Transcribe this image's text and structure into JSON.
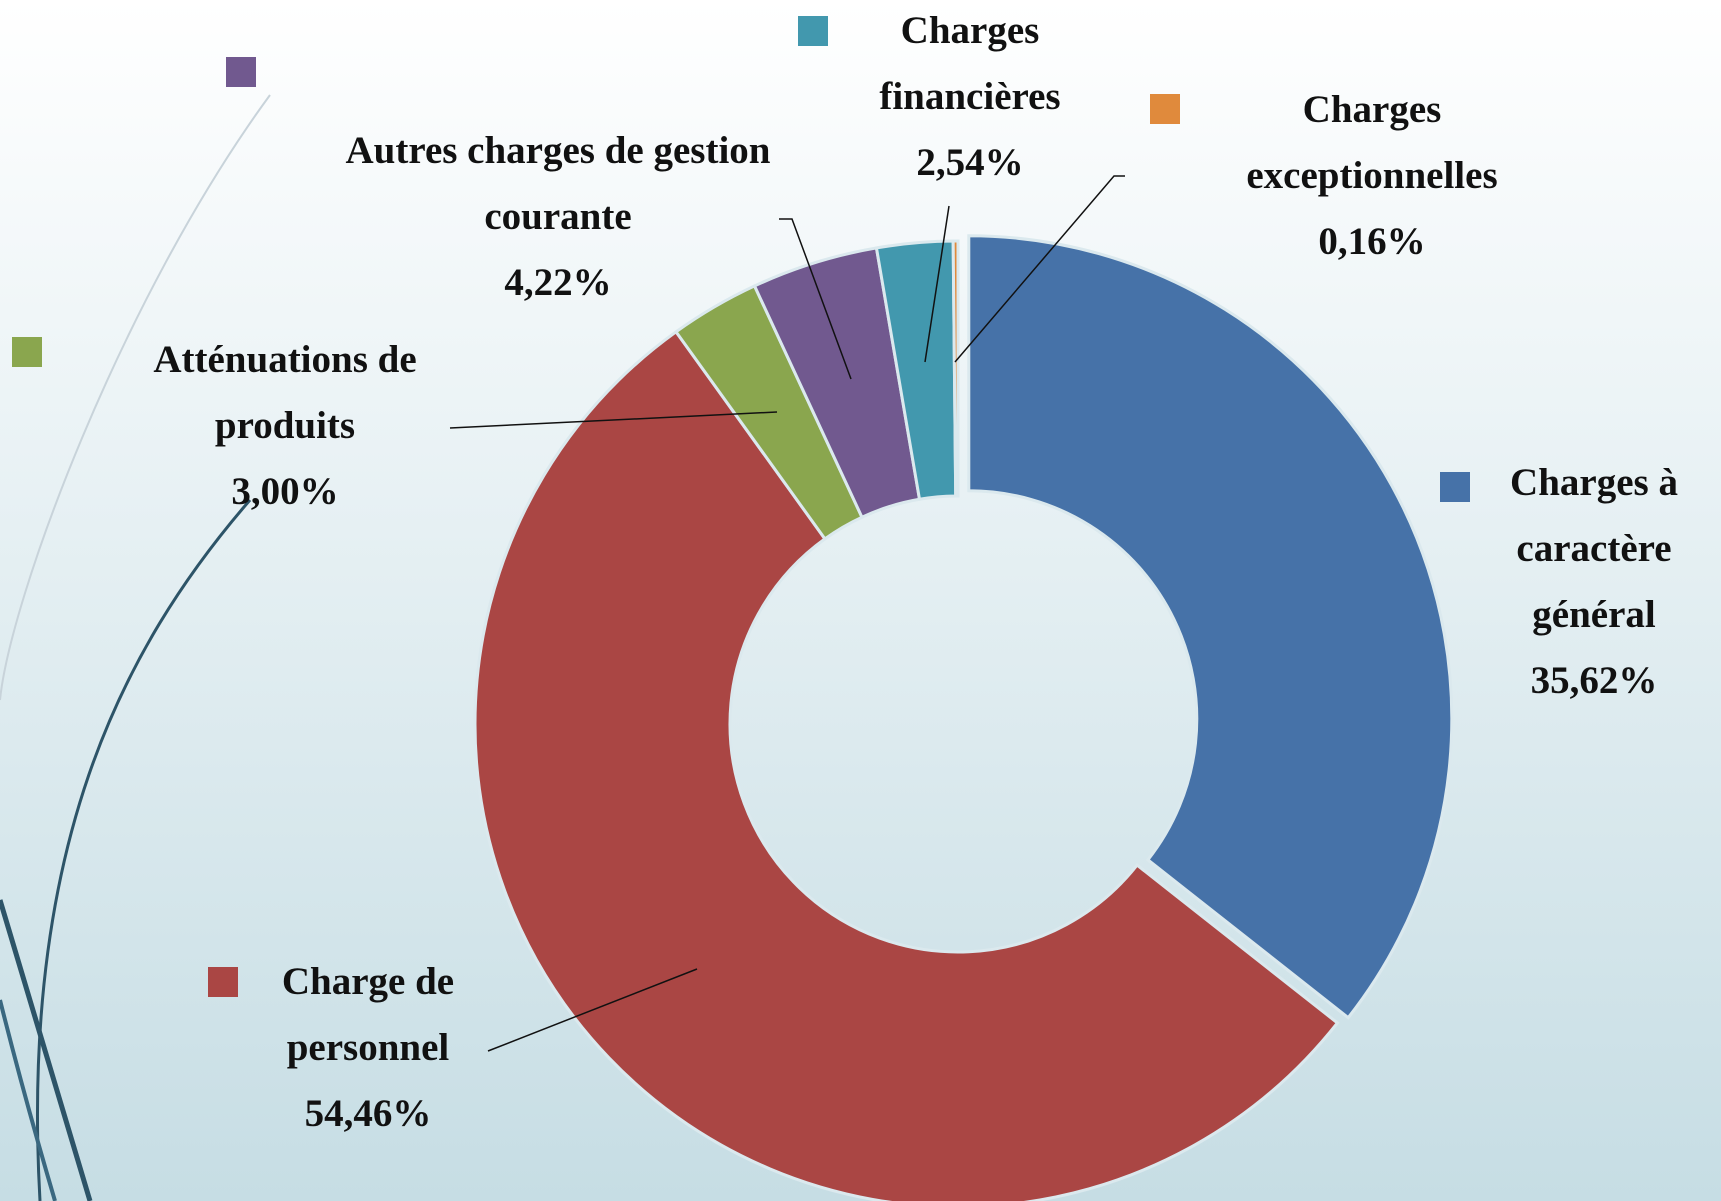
{
  "chart_data": {
    "type": "donut",
    "categories": [
      "Charges à caractère général",
      "Charge de personnel",
      "Atténuations de produits",
      "Autres charges de gestion courante",
      "Charges financières",
      "Charges exceptionnelles"
    ],
    "values": [
      35.62,
      54.46,
      3.0,
      4.22,
      2.54,
      0.16
    ],
    "value_labels": [
      "35,62%",
      "54,46%",
      "3,00%",
      "4,22%",
      "2,54%",
      "0,16%"
    ],
    "colors": [
      "#4672a8",
      "#aa4644",
      "#8aa64e",
      "#71598f",
      "#4298ae",
      "#e08a3c"
    ]
  }
}
